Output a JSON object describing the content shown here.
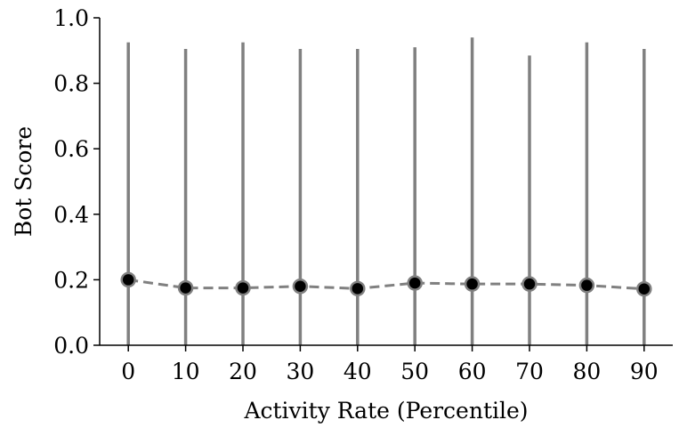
{
  "chart_data": {
    "type": "line",
    "xlabel": "Activity Rate (Percentile)",
    "ylabel": "Bot Score",
    "x": [
      0,
      10,
      20,
      30,
      40,
      50,
      60,
      70,
      80,
      90
    ],
    "x_tick_labels": [
      "0",
      "10",
      "20",
      "30",
      "40",
      "50",
      "60",
      "70",
      "80",
      "90"
    ],
    "y_tick_labels": [
      "0.0",
      "0.2",
      "0.4",
      "0.6",
      "0.8",
      "1.0"
    ],
    "ylim": [
      0,
      1
    ],
    "xlim": [
      -5,
      95
    ],
    "grid": false,
    "series": [
      {
        "values": [
          0.2,
          0.175,
          0.175,
          0.18,
          0.173,
          0.19,
          0.187,
          0.187,
          0.183,
          0.172
        ],
        "range_low": [
          0,
          0,
          0,
          0,
          0,
          0,
          0,
          0,
          0,
          0
        ],
        "range_high": [
          0.925,
          0.905,
          0.925,
          0.905,
          0.905,
          0.91,
          0.94,
          0.885,
          0.925,
          0.905
        ]
      }
    ],
    "colors": {
      "range_line": "#808080",
      "mean_line": "#808080",
      "marker_fill": "#000000",
      "marker_edge": "#808080",
      "axis": "#000000"
    }
  }
}
